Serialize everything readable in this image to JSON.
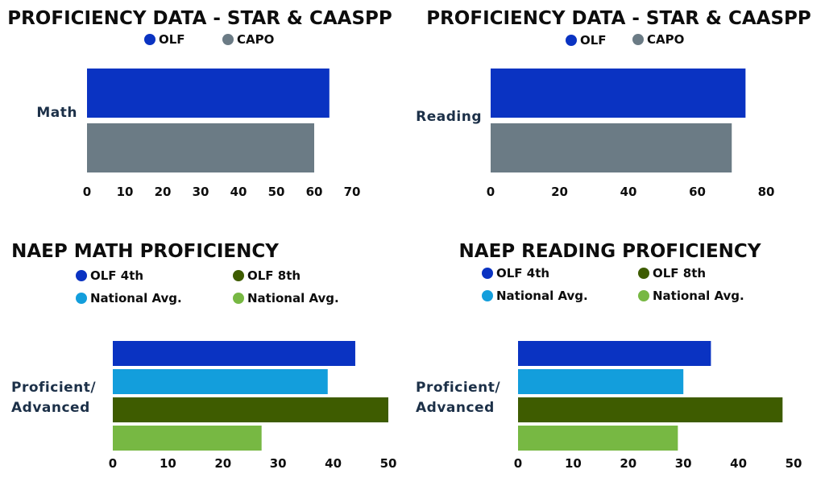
{
  "chart_data": [
    {
      "type": "bar",
      "title": "PROFICIENCY DATA - STAR & CAASPP",
      "categories": [
        "Math"
      ],
      "series": [
        {
          "name": "OLF",
          "values": [
            64
          ],
          "color": "#0a33c2"
        },
        {
          "name": "CAPO",
          "values": [
            60
          ],
          "color": "#6b7b85"
        }
      ],
      "xlim": [
        0,
        70
      ],
      "ticks": [
        0,
        10,
        20,
        30,
        40,
        50,
        60,
        70
      ],
      "legend_position": "top"
    },
    {
      "type": "bar",
      "title": "PROFICIENCY DATA - STAR & CAASPP",
      "categories": [
        "Reading"
      ],
      "series": [
        {
          "name": "OLF",
          "values": [
            74
          ],
          "color": "#0a33c2"
        },
        {
          "name": "CAPO",
          "values": [
            70
          ],
          "color": "#6b7b85"
        }
      ],
      "xlim": [
        0,
        80
      ],
      "ticks": [
        0,
        20,
        40,
        60,
        80
      ],
      "legend_position": "top"
    },
    {
      "type": "bar",
      "title": "NAEP MATH PROFICIENCY",
      "categories": [
        "Proficient/ Advanced"
      ],
      "category_lines": [
        "Proficient/",
        "Advanced"
      ],
      "series": [
        {
          "name": "OLF 4th",
          "values": [
            44
          ],
          "color": "#0a33c2"
        },
        {
          "name": "National Avg.",
          "values": [
            39
          ],
          "color": "#139edc"
        },
        {
          "name": "OLF 8th",
          "values": [
            50
          ],
          "color": "#3e5c00"
        },
        {
          "name": "National Avg.",
          "values": [
            27
          ],
          "color": "#77b843"
        }
      ],
      "xlim": [
        0,
        50
      ],
      "ticks": [
        0,
        10,
        20,
        30,
        40,
        50
      ],
      "legend_position": "top"
    },
    {
      "type": "bar",
      "title": "NAEP READING PROFICIENCY",
      "categories": [
        "Proficient/ Advanced"
      ],
      "category_lines": [
        "Proficient/",
        "Advanced"
      ],
      "series": [
        {
          "name": "OLF 4th",
          "values": [
            35
          ],
          "color": "#0a33c2"
        },
        {
          "name": "National Avg.",
          "values": [
            30
          ],
          "color": "#139edc"
        },
        {
          "name": "OLF 8th",
          "values": [
            48
          ],
          "color": "#3e5c00"
        },
        {
          "name": "National Avg.",
          "values": [
            29
          ],
          "color": "#77b843"
        }
      ],
      "xlim": [
        0,
        50
      ],
      "ticks": [
        0,
        10,
        20,
        30,
        40,
        50
      ],
      "legend_position": "top"
    }
  ]
}
